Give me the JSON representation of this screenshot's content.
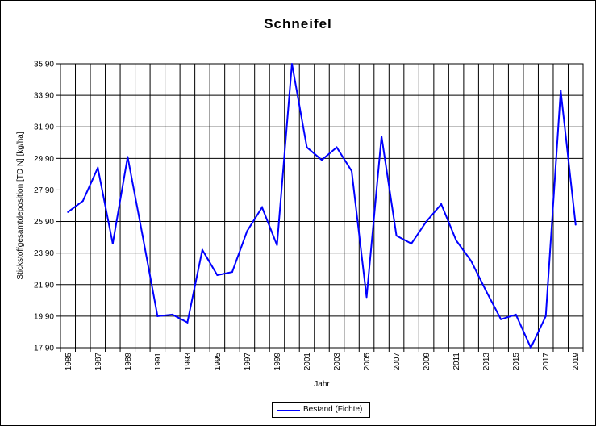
{
  "chart_data": {
    "type": "line",
    "title": "Schneifel",
    "xlabel": "Jahr",
    "ylabel": "Stickstoffgesamtdeposition [TD N] [kg/ha]",
    "ylim": [
      17.9,
      35.9
    ],
    "xlim": [
      1985,
      2019
    ],
    "ytick_labels": [
      "17,90",
      "19,90",
      "21,90",
      "23,90",
      "25,90",
      "27,90",
      "29,90",
      "31,90",
      "33,90",
      "35,90"
    ],
    "ytick_values": [
      17.9,
      19.9,
      21.9,
      23.9,
      25.9,
      27.9,
      29.9,
      31.9,
      33.9,
      35.9
    ],
    "xtick_labels": [
      "1985",
      "1987",
      "1989",
      "1991",
      "1993",
      "1995",
      "1997",
      "1999",
      "2001",
      "2003",
      "2005",
      "2007",
      "2009",
      "2011",
      "2013",
      "2015",
      "2017",
      "2019"
    ],
    "grid": true,
    "legend_position": "bottom-center",
    "series": [
      {
        "name": "Bestand (Fichte)",
        "color": "#0000ff",
        "x": [
          1985,
          1986,
          1987,
          1988,
          1989,
          1990,
          1991,
          1992,
          1993,
          1994,
          1995,
          1996,
          1997,
          1998,
          1999,
          2000,
          2001,
          2002,
          2003,
          2004,
          2005,
          2006,
          2007,
          2008,
          2009,
          2010,
          2011,
          2012,
          2013,
          2014,
          2015,
          2016,
          2017,
          2018,
          2019
        ],
        "values": [
          26.5,
          27.2,
          29.3,
          24.5,
          30.0,
          25.0,
          19.9,
          20.0,
          19.5,
          24.1,
          22.5,
          22.7,
          25.3,
          26.8,
          24.4,
          35.9,
          30.6,
          29.8,
          30.6,
          29.1,
          21.1,
          31.3,
          25.0,
          24.5,
          25.9,
          27.0,
          24.7,
          23.4,
          21.5,
          19.7,
          20.0,
          17.9,
          19.9,
          34.2,
          25.7
        ]
      }
    ]
  }
}
